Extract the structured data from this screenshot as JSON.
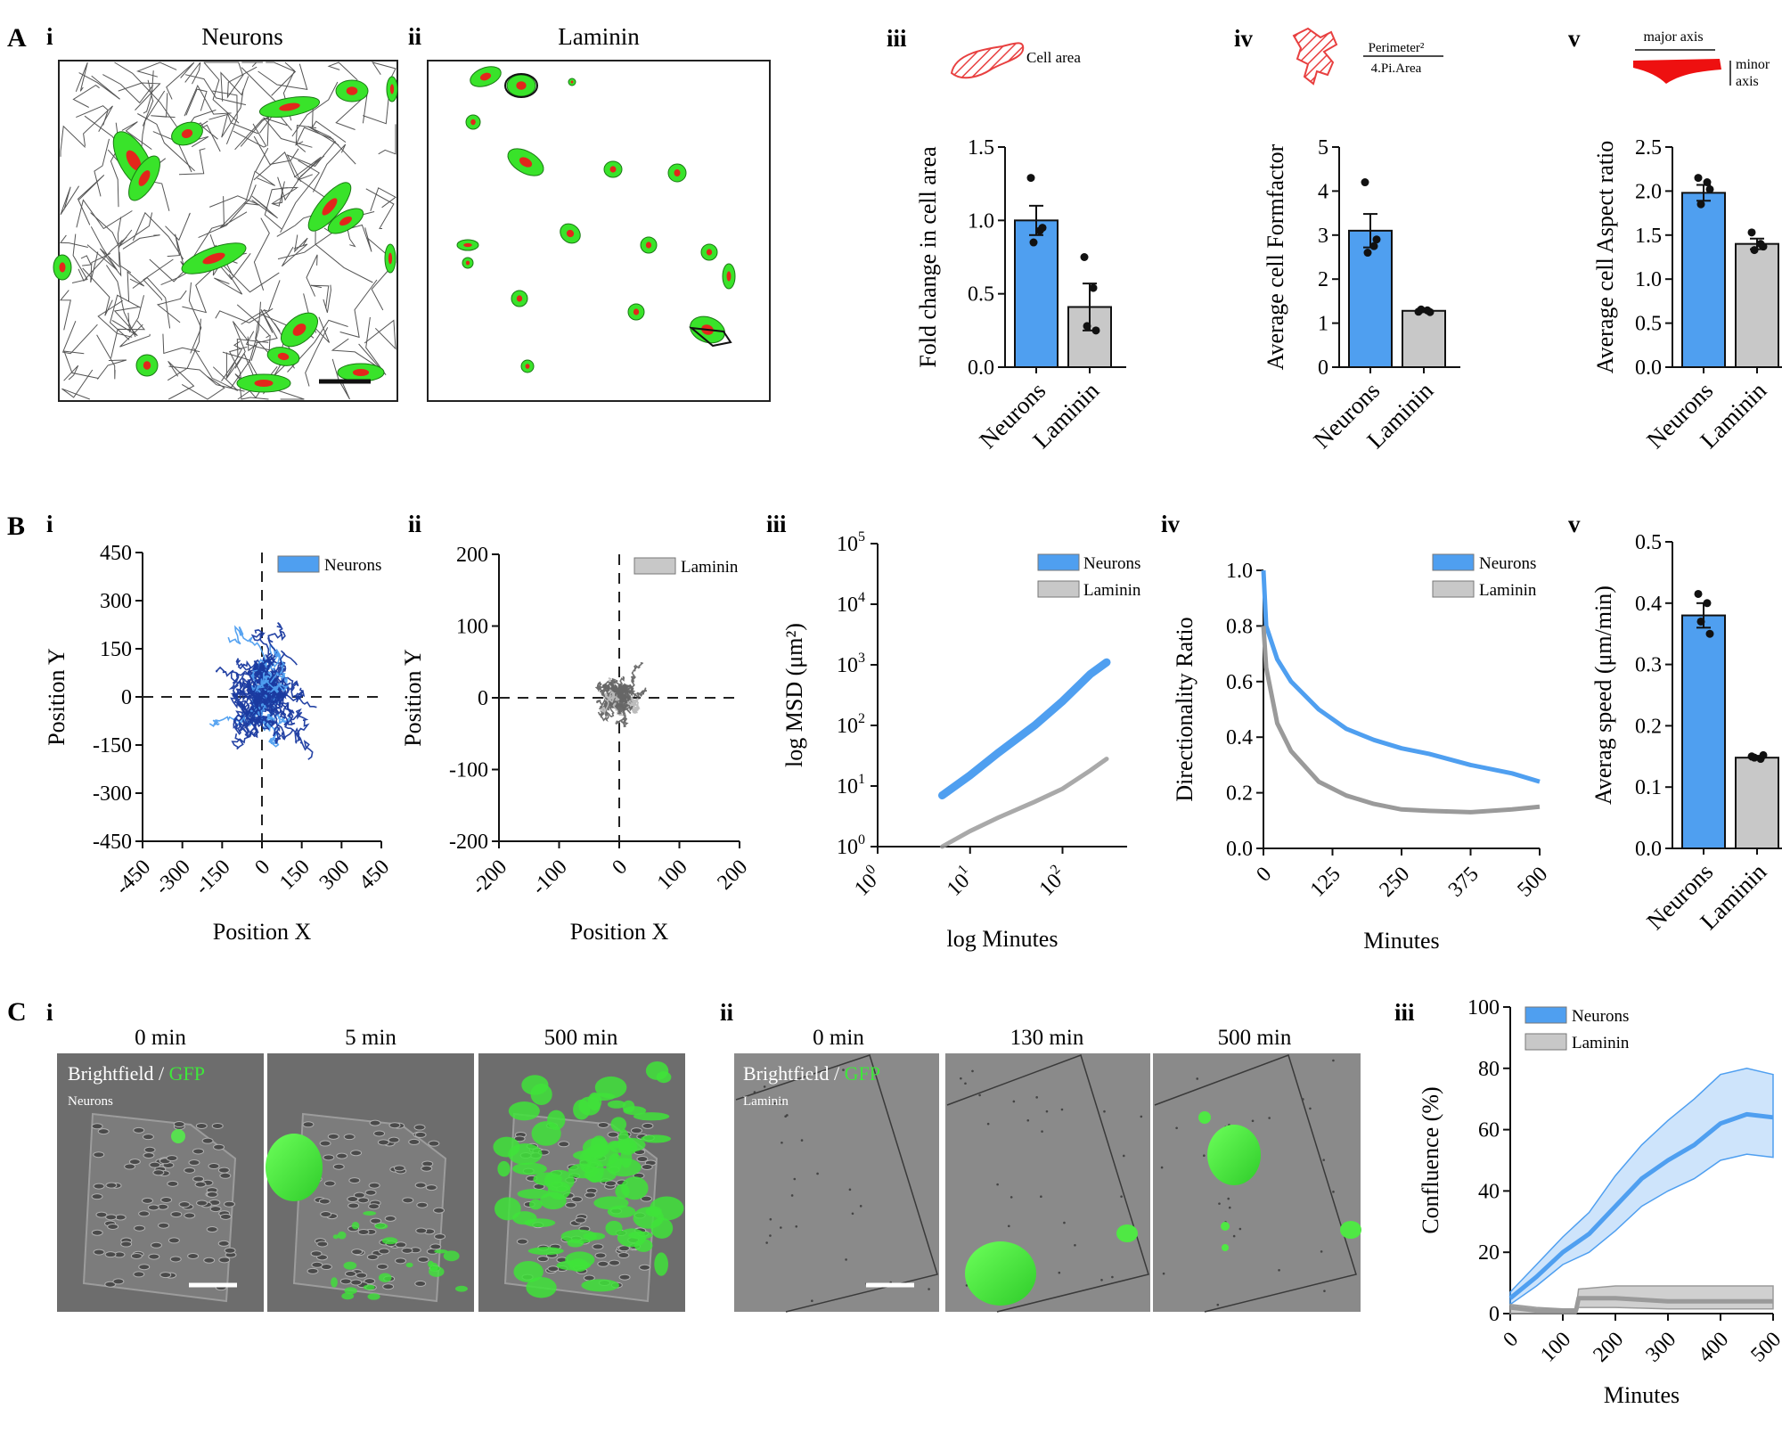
{
  "colors": {
    "neurons": "#4f9ff0",
    "neurons_dark": "#1a3aa0",
    "laminin": "#c8c8c8",
    "laminin_dark": "#7a7a7a",
    "cell_green": "#39e32a",
    "cell_red": "#e3261b"
  },
  "panel_letters": {
    "A": "A",
    "B": "B",
    "C": "C"
  },
  "panelA": {
    "sub_i": "i",
    "sub_ii": "ii",
    "sub_iii": "iii",
    "sub_iv": "iv",
    "sub_v": "v",
    "title_i": "Neurons",
    "title_ii": "Laminin",
    "iii_icon_label": "Cell area",
    "iv_icon_num": "Perimeter²",
    "iv_icon_den": "4.Pi.Area",
    "v_major": "major axis",
    "v_minor1": "minor",
    "v_minor2": "axis"
  },
  "panelB": {
    "sub_i": "i",
    "sub_ii": "ii",
    "sub_iii": "iii",
    "sub_iv": "iv",
    "sub_v": "v"
  },
  "panelC": {
    "sub_i": "i",
    "sub_ii": "ii",
    "sub_iii": "iii",
    "i_times": [
      "0 min",
      "5 min",
      "500 min"
    ],
    "ii_times": [
      "0 min",
      "130 min",
      "500 min"
    ],
    "overlay_bf": "Brightfield / ",
    "overlay_gfp": "GFP",
    "i_sample": "Neurons",
    "ii_sample": "Laminin"
  },
  "chart_data": [
    {
      "id": "A-iii",
      "type": "bar",
      "categories": [
        "Neurons",
        "Laminin"
      ],
      "values": [
        1.0,
        0.41
      ],
      "errors": [
        0.1,
        0.16
      ],
      "points": [
        [
          1.29,
          0.93,
          0.85,
          0.95
        ],
        [
          0.75,
          0.54,
          0.28,
          0.25
        ]
      ],
      "ylabel": "Fold change in cell area",
      "ylim": [
        0,
        1.5
      ],
      "yticks": [
        0.0,
        0.5,
        1.0,
        1.5
      ],
      "ytick_labels": [
        "0.0",
        "0.5",
        "1.0",
        "1.5"
      ]
    },
    {
      "id": "A-iv",
      "type": "bar",
      "categories": [
        "Neurons",
        "Laminin"
      ],
      "values": [
        3.1,
        1.28
      ],
      "errors": [
        0.38,
        0.03
      ],
      "points": [
        [
          4.2,
          2.75,
          2.6,
          2.9
        ],
        [
          1.26,
          1.29,
          1.31,
          1.25
        ]
      ],
      "ylabel": "Average cell Formfactor",
      "ylim": [
        0,
        5
      ],
      "yticks": [
        0,
        1,
        2,
        3,
        4,
        5
      ],
      "ytick_labels": [
        "0",
        "1",
        "2",
        "3",
        "4",
        "5"
      ]
    },
    {
      "id": "A-v",
      "type": "bar",
      "categories": [
        "Neurons",
        "Laminin"
      ],
      "values": [
        1.98,
        1.4
      ],
      "errors": [
        0.09,
        0.06
      ],
      "points": [
        [
          2.15,
          2.1,
          1.85,
          2.02
        ],
        [
          1.53,
          1.4,
          1.33,
          1.37
        ]
      ],
      "ylabel": "Average cell Aspect ratio",
      "ylim": [
        0,
        2.5
      ],
      "yticks": [
        0.0,
        0.5,
        1.0,
        1.5,
        2.0,
        2.5
      ],
      "ytick_labels": [
        "0.0",
        "0.5",
        "1.0",
        "1.5",
        "2.0",
        "2.5"
      ]
    },
    {
      "id": "B-i",
      "type": "scatter",
      "legend": "Neurons",
      "xlabel": "Position X",
      "ylabel": "Position Y",
      "xlim": [
        -450,
        450
      ],
      "ylim": [
        -450,
        450
      ],
      "xticks": [
        -450,
        -300,
        -150,
        0,
        150,
        300,
        450
      ],
      "xtick_labels": [
        "-450",
        "-300",
        "-150",
        "0",
        "150",
        "300",
        "450"
      ],
      "yticks": [
        450,
        300,
        150,
        0,
        -150,
        -300,
        -450
      ],
      "ytick_labels": [
        "450",
        "300",
        "150",
        "0",
        "-150",
        "-300",
        "-450"
      ]
    },
    {
      "id": "B-ii",
      "type": "scatter",
      "legend": "Laminin",
      "xlabel": "Position X",
      "ylabel": "Position Y",
      "xlim": [
        -200,
        200
      ],
      "ylim": [
        -200,
        200
      ],
      "xticks": [
        -200,
        -100,
        0,
        100,
        200
      ],
      "xtick_labels": [
        "-200",
        "-100",
        "0",
        "100",
        "200"
      ],
      "yticks": [
        200,
        100,
        0,
        -100,
        -200
      ],
      "ytick_labels": [
        "200",
        "100",
        "0",
        "-100",
        "-200"
      ]
    },
    {
      "id": "B-iii",
      "type": "line",
      "xlabel": "log Minutes",
      "ylabel": "log MSD (μm²)",
      "xscale": "log",
      "yscale": "log",
      "xlim": [
        1,
        500
      ],
      "ylim": [
        1,
        100000
      ],
      "xtick_labels": [
        [
          "10",
          "0"
        ],
        [
          "10",
          "1"
        ],
        [
          "10",
          "2"
        ]
      ],
      "ytick_labels": [
        [
          "10",
          "0"
        ],
        [
          "10",
          "1"
        ],
        [
          "10",
          "2"
        ],
        [
          "10",
          "3"
        ],
        [
          "10",
          "4"
        ],
        [
          "10",
          "5"
        ]
      ],
      "series": [
        {
          "name": "Neurons",
          "x": [
            5,
            10,
            20,
            50,
            100,
            200,
            300
          ],
          "y": [
            7,
            15,
            35,
            100,
            250,
            700,
            1100
          ]
        },
        {
          "name": "Laminin",
          "x": [
            5,
            10,
            20,
            50,
            100,
            200,
            300
          ],
          "y": [
            1,
            1.8,
            3,
            5.5,
            9,
            18,
            28
          ]
        }
      ]
    },
    {
      "id": "B-iv",
      "type": "line",
      "xlabel": "Minutes",
      "ylabel": "Directionality Ratio",
      "xlim": [
        0,
        500
      ],
      "ylim": [
        0,
        1.0
      ],
      "xticks": [
        0,
        125,
        250,
        375,
        500
      ],
      "xtick_labels": [
        "0",
        "125",
        "250",
        "375",
        "500"
      ],
      "yticks": [
        0.0,
        0.2,
        0.4,
        0.6,
        0.8,
        1.0
      ],
      "ytick_labels": [
        "0.0",
        "0.2",
        "0.4",
        "0.6",
        "0.8",
        "1.0"
      ],
      "series": [
        {
          "name": "Neurons",
          "x": [
            0,
            5,
            25,
            50,
            100,
            150,
            200,
            250,
            300,
            375,
            450,
            500
          ],
          "y": [
            1.0,
            0.8,
            0.68,
            0.6,
            0.5,
            0.43,
            0.39,
            0.36,
            0.34,
            0.3,
            0.27,
            0.24
          ]
        },
        {
          "name": "Laminin",
          "x": [
            0,
            5,
            25,
            50,
            100,
            150,
            200,
            250,
            300,
            375,
            450,
            500
          ],
          "y": [
            0.8,
            0.65,
            0.45,
            0.35,
            0.24,
            0.19,
            0.16,
            0.14,
            0.135,
            0.13,
            0.14,
            0.15
          ]
        }
      ]
    },
    {
      "id": "B-v",
      "type": "bar",
      "categories": [
        "Neurons",
        "Laminin"
      ],
      "values": [
        0.38,
        0.148
      ],
      "errors": [
        0.02,
        0.003
      ],
      "points": [
        [
          0.415,
          0.4,
          0.37,
          0.35
        ],
        [
          0.15,
          0.146,
          0.148,
          0.152
        ]
      ],
      "ylabel": "Averag speed (μm/min)",
      "ylim": [
        0,
        0.5
      ],
      "yticks": [
        0.0,
        0.1,
        0.2,
        0.3,
        0.4,
        0.5
      ],
      "ytick_labels": [
        "0.0",
        "0.1",
        "0.2",
        "0.3",
        "0.4",
        "0.5"
      ]
    },
    {
      "id": "C-iii",
      "type": "area",
      "xlabel": "Minutes",
      "ylabel": "Confluence (%)",
      "xlim": [
        0,
        500
      ],
      "ylim": [
        0,
        100
      ],
      "xticks": [
        0,
        100,
        200,
        300,
        400,
        500
      ],
      "xtick_labels": [
        "0",
        "100",
        "200",
        "300",
        "400",
        "500"
      ],
      "yticks": [
        0,
        20,
        40,
        60,
        80,
        100
      ],
      "ytick_labels": [
        "0",
        "20",
        "40",
        "60",
        "80",
        "100"
      ],
      "series": [
        {
          "name": "Neurons",
          "x": [
            0,
            50,
            100,
            150,
            200,
            250,
            300,
            350,
            400,
            450,
            500
          ],
          "y": [
            5,
            12,
            20,
            26,
            35,
            44,
            50,
            55,
            62,
            65,
            64
          ],
          "upper": [
            7,
            16,
            25,
            33,
            45,
            55,
            63,
            70,
            78,
            80,
            78
          ],
          "lower": [
            3,
            9,
            16,
            20,
            27,
            35,
            40,
            44,
            50,
            52,
            51
          ]
        },
        {
          "name": "Laminin",
          "x": [
            0,
            50,
            100,
            125,
            130,
            200,
            300,
            400,
            500
          ],
          "y": [
            2,
            1,
            1,
            1,
            5,
            5,
            4,
            4,
            4
          ],
          "upper": [
            3,
            2,
            1.5,
            1.5,
            8,
            9,
            9,
            9,
            9
          ],
          "lower": [
            0,
            0,
            0,
            0,
            2,
            2,
            1.5,
            1.5,
            1.5
          ]
        }
      ]
    }
  ]
}
